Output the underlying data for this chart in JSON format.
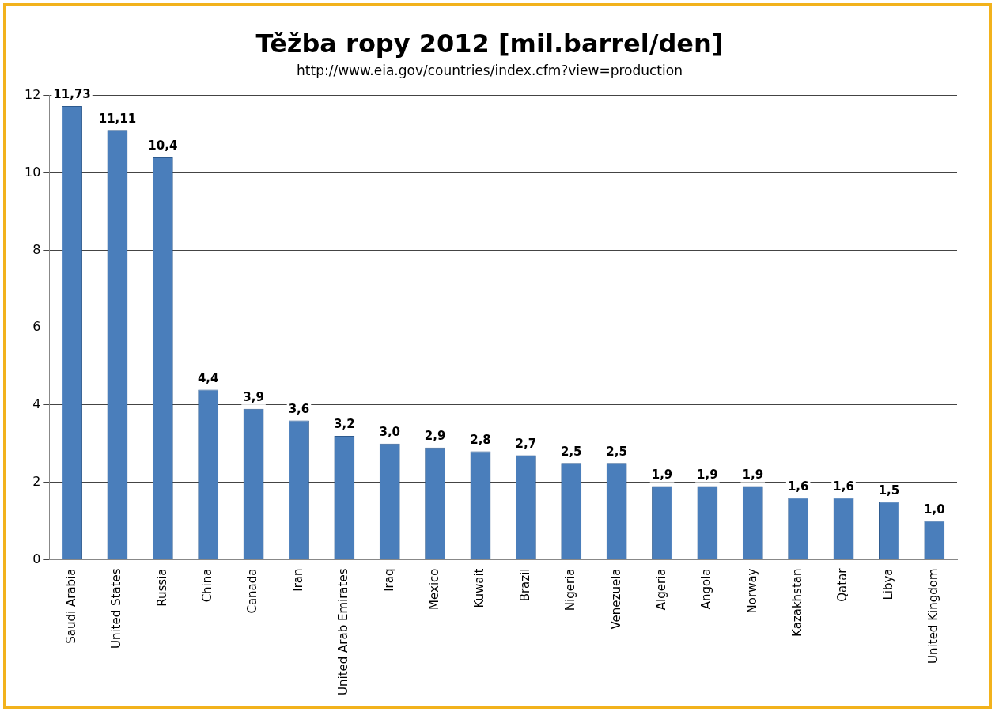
{
  "chart_data": {
    "type": "bar",
    "title": "Těžba ropy 2012 [mil.barrel/den]",
    "subtitle": "http://www.eia.gov/countries/index.cfm?view=production",
    "categories": [
      "Saudi Arabia",
      "United States",
      "Russia",
      "China",
      "Canada",
      "Iran",
      "United Arab Emirates",
      "Iraq",
      "Mexico",
      "Kuwait",
      "Brazil",
      "Nigeria",
      "Venezuela",
      "Algeria",
      "Angola",
      "Norway",
      "Kazakhstan",
      "Qatar",
      "Libya",
      "United Kingdom"
    ],
    "values": [
      11.73,
      11.11,
      10.4,
      4.4,
      3.9,
      3.6,
      3.2,
      3.0,
      2.9,
      2.8,
      2.7,
      2.5,
      2.5,
      1.9,
      1.9,
      1.9,
      1.6,
      1.6,
      1.5,
      1.0
    ],
    "value_labels": [
      "11,73",
      "11,11",
      "10,4",
      "4,4",
      "3,9",
      "3,6",
      "3,2",
      "3,0",
      "2,9",
      "2,8",
      "2,7",
      "2,5",
      "2,5",
      "1,9",
      "1,9",
      "1,9",
      "1,6",
      "1,6",
      "1,5",
      "1,0"
    ],
    "color": "#4a7ebb",
    "ylim": [
      0,
      12
    ],
    "yticks": [
      0,
      2,
      4,
      6,
      8,
      10,
      12
    ],
    "grid": "y",
    "legend": false
  }
}
